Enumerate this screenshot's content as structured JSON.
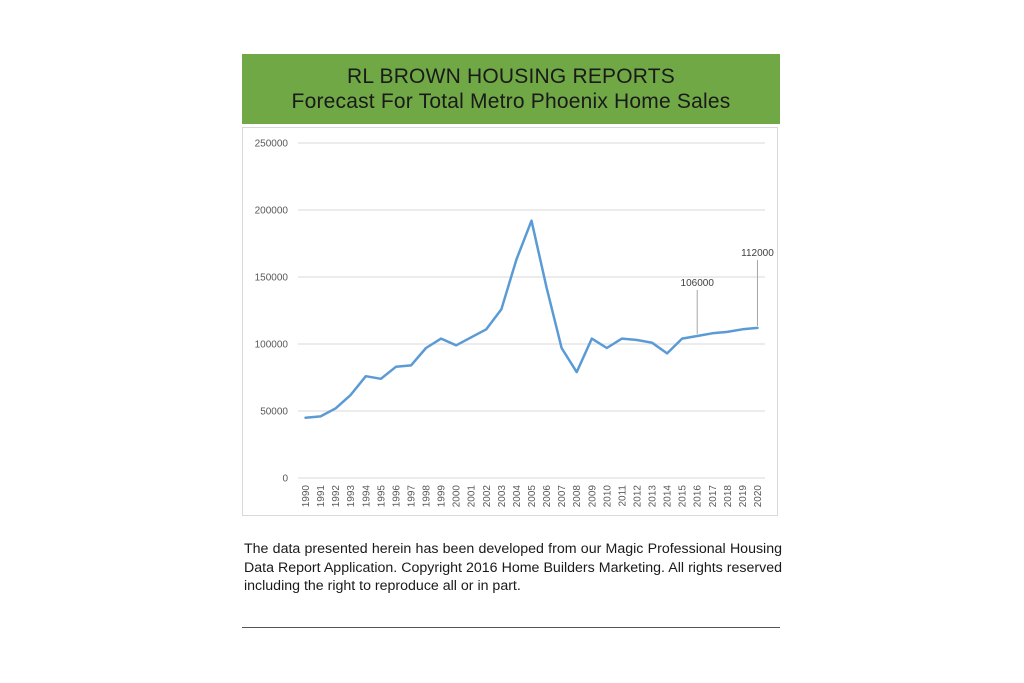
{
  "banner": {
    "line1": "RL BROWN HOUSING REPORTS",
    "line2": "Forecast For Total Metro Phoenix Home Sales",
    "color": "#70a846"
  },
  "caption": "The data presented herein has been developed from our Magic Professional Housing Data Report Application. Copyright 2016 Home Builders Marketing. All rights reserved including the right to reproduce all or in part.",
  "chart_data": {
    "type": "line",
    "title": "",
    "xlabel": "",
    "ylabel": "",
    "ylim": [
      0,
      250000
    ],
    "yticks": [
      0,
      50000,
      100000,
      150000,
      200000,
      250000
    ],
    "grid": true,
    "x": [
      "1990",
      "1991",
      "1992",
      "1993",
      "1994",
      "1995",
      "1996",
      "1997",
      "1998",
      "1999",
      "2000",
      "2001",
      "2002",
      "2003",
      "2004",
      "2005",
      "2006",
      "2007",
      "2008",
      "2009",
      "2010",
      "2011",
      "2012",
      "2013",
      "2014",
      "2015",
      "2016",
      "2017",
      "2018",
      "2019",
      "2020"
    ],
    "series": [
      {
        "color": "#5b9bd5",
        "values": [
          45000,
          46000,
          52000,
          62000,
          76000,
          74000,
          83000,
          84000,
          97000,
          104000,
          99000,
          105000,
          111000,
          126000,
          163000,
          192000,
          142000,
          97000,
          79000,
          104000,
          97000,
          104000,
          103000,
          101000,
          93000,
          104000,
          106000,
          108000,
          109000,
          111000,
          112000
        ]
      }
    ],
    "annotations": [
      {
        "x": "2016",
        "value": 106000,
        "label": "106000"
      },
      {
        "x": "2020",
        "value": 112000,
        "label": "112000"
      }
    ]
  }
}
